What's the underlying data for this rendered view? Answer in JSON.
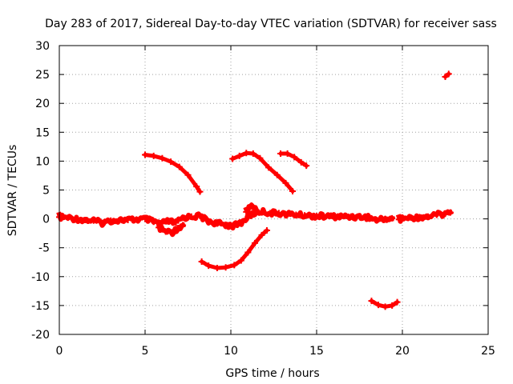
{
  "chart_data": {
    "type": "scatter",
    "title": "Day 283 of 2017, Sidereal Day-to-day VTEC variation (SDTVAR) for receiver sass",
    "xlabel": "GPS time / hours",
    "ylabel": "SDTVAR / TECUs",
    "xlim": [
      0,
      25
    ],
    "ylim": [
      -20,
      30
    ],
    "xticks": [
      0,
      5,
      10,
      15,
      20,
      25
    ],
    "yticks": [
      -20,
      -15,
      -10,
      -5,
      0,
      5,
      10,
      15,
      20,
      25,
      30
    ],
    "grid": true,
    "point_color": "#ff0000",
    "series": [
      {
        "name": "baseline-noise",
        "style": "noisy",
        "points": [
          [
            0.0,
            0.3
          ],
          [
            0.5,
            0.2
          ],
          [
            1.0,
            0.0
          ],
          [
            1.5,
            -0.2
          ],
          [
            2.0,
            -0.3
          ],
          [
            2.5,
            -0.7
          ],
          [
            3.0,
            -0.3
          ],
          [
            3.5,
            -0.2
          ],
          [
            4.0,
            -0.2
          ],
          [
            4.5,
            -0.1
          ],
          [
            5.0,
            0.0
          ],
          [
            5.5,
            -0.5
          ],
          [
            6.0,
            -0.8
          ],
          [
            6.3,
            -0.4
          ],
          [
            6.8,
            -0.7
          ],
          [
            7.2,
            0.2
          ],
          [
            7.7,
            0.4
          ],
          [
            8.2,
            0.5
          ],
          [
            8.7,
            -0.4
          ],
          [
            9.2,
            -0.8
          ],
          [
            9.7,
            -1.0
          ],
          [
            10.2,
            -1.2
          ],
          [
            10.7,
            -0.5
          ],
          [
            11.0,
            0.4
          ],
          [
            11.4,
            1.0
          ],
          [
            11.8,
            1.3
          ],
          [
            12.3,
            1.0
          ],
          [
            12.8,
            1.0
          ],
          [
            13.3,
            0.8
          ],
          [
            13.8,
            0.7
          ],
          [
            14.3,
            0.6
          ],
          [
            15.0,
            0.5
          ],
          [
            16.0,
            0.4
          ],
          [
            17.0,
            0.4
          ],
          [
            18.0,
            0.3
          ],
          [
            18.5,
            -0.2
          ],
          [
            19.0,
            0.0
          ],
          [
            19.4,
            0.1
          ]
        ]
      },
      {
        "name": "baseline-low-dip",
        "style": "noisy",
        "points": [
          [
            5.8,
            -1.5
          ],
          [
            6.2,
            -2.2
          ],
          [
            6.6,
            -2.3
          ],
          [
            6.9,
            -1.6
          ],
          [
            7.2,
            -1.1
          ]
        ]
      },
      {
        "name": "baseline-bump",
        "style": "noisy",
        "points": [
          [
            10.9,
            1.2
          ],
          [
            11.2,
            2.3
          ],
          [
            11.5,
            1.5
          ]
        ]
      },
      {
        "name": "late-segment",
        "style": "noisy",
        "points": [
          [
            19.8,
            -0.1
          ],
          [
            20.5,
            0.2
          ],
          [
            21.0,
            0.3
          ],
          [
            21.5,
            0.4
          ],
          [
            22.0,
            0.7
          ],
          [
            22.5,
            0.9
          ],
          [
            22.8,
            1.1
          ]
        ]
      },
      {
        "name": "arc-5-8h",
        "style": "arc",
        "points": [
          [
            5.0,
            11.1
          ],
          [
            5.5,
            10.9
          ],
          [
            6.0,
            10.5
          ],
          [
            6.5,
            9.9
          ],
          [
            7.0,
            9.0
          ],
          [
            7.5,
            7.6
          ],
          [
            8.0,
            5.6
          ],
          [
            8.2,
            4.7
          ]
        ]
      },
      {
        "name": "arc-10-13h",
        "style": "arc",
        "points": [
          [
            10.1,
            10.4
          ],
          [
            10.5,
            10.9
          ],
          [
            10.9,
            11.4
          ],
          [
            11.3,
            11.3
          ],
          [
            11.7,
            10.5
          ],
          [
            12.2,
            8.9
          ],
          [
            12.7,
            7.6
          ],
          [
            13.2,
            6.2
          ],
          [
            13.6,
            4.8
          ]
        ]
      },
      {
        "name": "arc-13-14h",
        "style": "arc",
        "points": [
          [
            12.9,
            11.3
          ],
          [
            13.3,
            11.3
          ],
          [
            13.7,
            10.7
          ],
          [
            14.1,
            9.8
          ],
          [
            14.4,
            9.2
          ]
        ]
      },
      {
        "name": "arc-8-12h-negative",
        "style": "arc",
        "points": [
          [
            8.3,
            -7.4
          ],
          [
            8.7,
            -8.1
          ],
          [
            9.2,
            -8.5
          ],
          [
            9.7,
            -8.4
          ],
          [
            10.2,
            -8.0
          ],
          [
            10.6,
            -7.2
          ],
          [
            11.0,
            -5.8
          ],
          [
            11.4,
            -4.2
          ],
          [
            11.8,
            -2.8
          ],
          [
            12.1,
            -2.0
          ]
        ]
      },
      {
        "name": "arc-18-20h",
        "style": "arc",
        "points": [
          [
            18.2,
            -14.2
          ],
          [
            18.6,
            -14.9
          ],
          [
            19.0,
            -15.2
          ],
          [
            19.4,
            -15.0
          ],
          [
            19.7,
            -14.4
          ]
        ]
      },
      {
        "name": "outlier",
        "style": "arc",
        "points": [
          [
            22.5,
            24.6
          ],
          [
            22.7,
            25.1
          ]
        ]
      }
    ]
  }
}
